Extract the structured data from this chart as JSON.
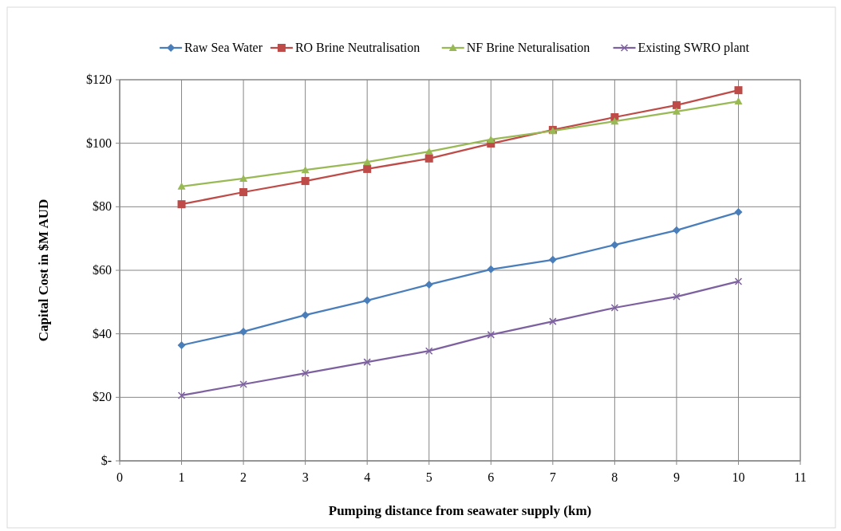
{
  "chart_data": {
    "type": "line",
    "xlabel": "Pumping distance from seawater supply (km)",
    "ylabel": "Capital Cost in $M AUD",
    "x": [
      1,
      2,
      3,
      4,
      5,
      6,
      7,
      8,
      9,
      10
    ],
    "xlim": [
      0,
      11
    ],
    "xticks": [
      0,
      1,
      2,
      3,
      4,
      5,
      6,
      7,
      8,
      9,
      10,
      11
    ],
    "ylim": [
      0,
      120
    ],
    "yticks": [
      {
        "value": 0,
        "label": "$-"
      },
      {
        "value": 20,
        "label": "$20"
      },
      {
        "value": 40,
        "label": "$40"
      },
      {
        "value": 60,
        "label": "$60"
      },
      {
        "value": 80,
        "label": "$80"
      },
      {
        "value": 100,
        "label": "$100"
      },
      {
        "value": 120,
        "label": "$120"
      }
    ],
    "grid": true,
    "legend": "top",
    "line_style": "solid",
    "series": [
      {
        "name": "Raw Sea Water",
        "color": "#4a7ebb",
        "marker": "diamond",
        "values": [
          36.4,
          40.7,
          45.9,
          50.5,
          55.5,
          60.3,
          63.3,
          68.0,
          72.6,
          78.3
        ]
      },
      {
        "name": "RO Brine Neutralisation",
        "color": "#be4b48",
        "marker": "square",
        "values": [
          80.8,
          84.6,
          88.1,
          91.9,
          95.2,
          99.9,
          104.2,
          108.2,
          112.0,
          116.7
        ]
      },
      {
        "name": "NF Brine Neturalisation",
        "color": "#98b954",
        "marker": "triangle",
        "values": [
          86.4,
          88.9,
          91.6,
          94.1,
          97.4,
          101.2,
          103.9,
          106.9,
          110.0,
          113.2
        ]
      },
      {
        "name": "Existing SWRO plant",
        "color": "#7d60a0",
        "marker": "cross",
        "values": [
          20.6,
          24.1,
          27.6,
          31.1,
          34.6,
          39.7,
          43.9,
          48.2,
          51.7,
          56.5
        ]
      }
    ]
  }
}
